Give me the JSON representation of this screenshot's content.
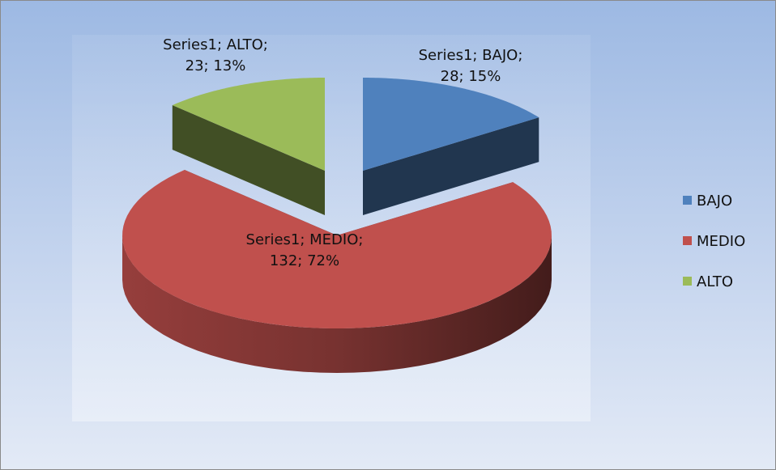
{
  "chart_data": {
    "type": "pie3d",
    "series_name": "Series1",
    "categories": [
      "BAJO",
      "MEDIO",
      "ALTO"
    ],
    "values": [
      28,
      132,
      23
    ],
    "value_labels": [
      "Series1; BAJO; 28; 15%",
      "Series1; MEDIO; 132; 72%",
      "Series1; ALTO; 23; 13%"
    ],
    "colors": [
      "#4f81bd",
      "#c0504d",
      "#9bbb59"
    ],
    "legend": "right"
  }
}
